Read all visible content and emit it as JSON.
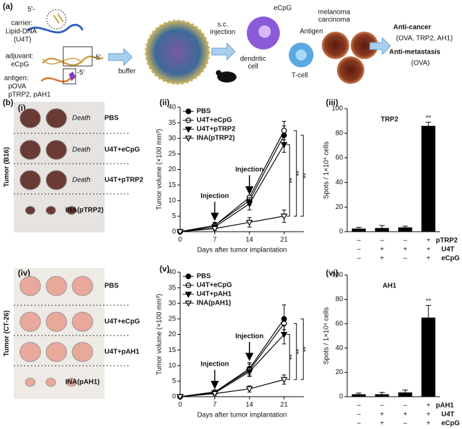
{
  "panel_labels": [
    "(a)",
    "(b)",
    "(i)",
    "(ii)",
    "(iii)",
    "(iv)",
    "(v)",
    "(vi)"
  ],
  "scheme": {
    "five_prime": "5'-",
    "carrier": "carrier:",
    "lipid_dna": "Lipid-DNA",
    "u4t": "(U4T)",
    "adjuvant": "adjuvant:",
    "ecpg": "eCpG",
    "three_end_1": "-5'",
    "antigen": "antigen:",
    "povа": "pOVA",
    "peptides": "pTRP2, pAH1",
    "three_end_2": "-5'",
    "buffer": "buffer",
    "injection": [
      "s.c.",
      "injection"
    ],
    "cell_ecpg": "eCpG",
    "dendritic": [
      "dendritic",
      "cell"
    ],
    "tcell": "T-cell",
    "cell_antigen": "Antigen",
    "tumor": [
      "melanoma",
      "carcinoma"
    ],
    "anticancer": "Anti-cancer",
    "anticancer_targets": "(OVA, TRP2, AH1)",
    "antimetastasis": "Anti-metastasis",
    "antimetastasis_targets": "(OVA)"
  },
  "photos": [
    {
      "axis_label": "Tumor (B16)",
      "rows": [
        {
          "note": "Death",
          "label": "PBS"
        },
        {
          "note": "Death",
          "label": "U4T+eCpG"
        },
        {
          "note": "Death",
          "label": "U4T+pTRP2"
        },
        {
          "label": "INA(pTRP2)"
        }
      ]
    },
    {
      "axis_label": "Tumor (CT-26)",
      "rows": [
        {
          "label": "PBS"
        },
        {
          "label": "U4T+eCpG"
        },
        {
          "label": "U4T+pAH1"
        },
        {
          "label": "INA(pAH1)"
        }
      ]
    }
  ],
  "chart_data": [
    {
      "type": "line",
      "xlabel": "Days after tumor implantation",
      "ylabel": "Tumor volume (×100 mm³)",
      "x": [
        0,
        7,
        14,
        21
      ],
      "xlim": [
        0,
        25
      ],
      "xticks": [
        0,
        7,
        14,
        21
      ],
      "ylim": [
        0,
        40
      ],
      "yticks": [
        0,
        5,
        10,
        15,
        20,
        25,
        30,
        35,
        40
      ],
      "annotations": [
        "Injection",
        "Injection"
      ],
      "significance": [
        "**",
        "**",
        "**"
      ],
      "series": [
        {
          "name": "PBS",
          "color": "#000000",
          "label_color": "#000000",
          "marker": "circle",
          "values": [
            0,
            2,
            10,
            31
          ],
          "errors": [
            0,
            1,
            1.5,
            3
          ]
        },
        {
          "name": "U4T+eCpG",
          "color": "#000000",
          "label_color": "#2f4f9f",
          "marker": "open-circle",
          "values": [
            0,
            2,
            11,
            32.5
          ],
          "errors": [
            0,
            1,
            2,
            3
          ]
        },
        {
          "name": "U4T+pTRP2",
          "color": "#000000",
          "label_color": "#8a3fb0",
          "marker": "triangle",
          "values": [
            0,
            1.5,
            9,
            28
          ],
          "errors": [
            0,
            1,
            2,
            2.5
          ]
        },
        {
          "name": "INA(pTRP2)",
          "color": "#000000",
          "label_color": "#e0402a",
          "marker": "open-triangle",
          "values": [
            0,
            1,
            3,
            5
          ],
          "errors": [
            0,
            0.5,
            1.5,
            2
          ]
        }
      ]
    },
    {
      "type": "bar",
      "title": "TRP2",
      "title_color": "#8a3fb0",
      "ylabel": "Spots / 1×10⁴ cells",
      "color": "#000000",
      "categories": [
        null,
        null,
        null,
        null
      ],
      "values": [
        2.5,
        3,
        3.5,
        86
      ],
      "errors": [
        1,
        2,
        1,
        3
      ],
      "ylim": [
        0,
        100
      ],
      "yticks": [
        0,
        20,
        40,
        60,
        80,
        100
      ],
      "annotations": [
        "**"
      ],
      "conditions": [
        {
          "name": "pTRP2",
          "color": "#8a3fb0",
          "signs": [
            "–",
            "–",
            "–",
            "+"
          ]
        },
        {
          "name": "U4T",
          "color": "#2f6fc0",
          "signs": [
            "–",
            "+",
            "+",
            "+"
          ]
        },
        {
          "name": "eCpG",
          "color": "#9a8a3a",
          "signs": [
            "–",
            "+",
            "–",
            "+"
          ]
        }
      ]
    },
    {
      "type": "line",
      "xlabel": "Days after tumor implantation",
      "ylabel": "Tumor volume (×100 mm³)",
      "x": [
        0,
        7,
        14,
        21
      ],
      "xlim": [
        0,
        25
      ],
      "xticks": [
        0,
        7,
        14,
        21
      ],
      "ylim": [
        0,
        40
      ],
      "yticks": [
        0,
        5,
        10,
        15,
        20,
        25,
        30,
        35,
        40
      ],
      "annotations": [
        "Injection",
        "Injection"
      ],
      "significance": [
        "**",
        "**",
        "**"
      ],
      "series": [
        {
          "name": "PBS",
          "color": "#000000",
          "label_color": "#000000",
          "marker": "circle",
          "values": [
            0,
            1.5,
            9,
            25
          ],
          "errors": [
            0,
            0.5,
            2,
            4.5
          ]
        },
        {
          "name": "U4T+eCpG",
          "color": "#000000",
          "label_color": "#2f4f9f",
          "marker": "open-circle",
          "values": [
            0,
            1.5,
            8.5,
            23.5
          ],
          "errors": [
            0,
            0.5,
            2,
            2
          ]
        },
        {
          "name": "U4T+pAH1",
          "color": "#000000",
          "label_color": "#8a3fb0",
          "marker": "triangle",
          "values": [
            0,
            1.2,
            8,
            20
          ],
          "errors": [
            0,
            0.5,
            1.5,
            3
          ]
        },
        {
          "name": "INA(pAH1)",
          "color": "#000000",
          "label_color": "#e0402a",
          "marker": "open-triangle",
          "values": [
            0,
            1,
            2.5,
            5.5
          ],
          "errors": [
            0,
            0.5,
            1,
            1.5
          ]
        }
      ]
    },
    {
      "type": "bar",
      "title": "AH1",
      "title_color": "#8a3fb0",
      "ylabel": "Spots / 1×10⁴ cells",
      "color": "#000000",
      "categories": [
        null,
        null,
        null,
        null
      ],
      "values": [
        2,
        2,
        3.5,
        65
      ],
      "errors": [
        1,
        1.5,
        2,
        10
      ],
      "ylim": [
        0,
        100
      ],
      "yticks": [
        0,
        20,
        40,
        60,
        80,
        100
      ],
      "annotations": [
        "**"
      ],
      "conditions": [
        {
          "name": "pAH1",
          "color": "#8a3fb0",
          "signs": [
            "–",
            "–",
            "–",
            "+"
          ]
        },
        {
          "name": "U4T",
          "color": "#2f6fc0",
          "signs": [
            "–",
            "+",
            "+",
            "+"
          ]
        },
        {
          "name": "eCpG",
          "color": "#9a8a3a",
          "signs": [
            "–",
            "+",
            "–",
            "+"
          ]
        }
      ]
    }
  ]
}
